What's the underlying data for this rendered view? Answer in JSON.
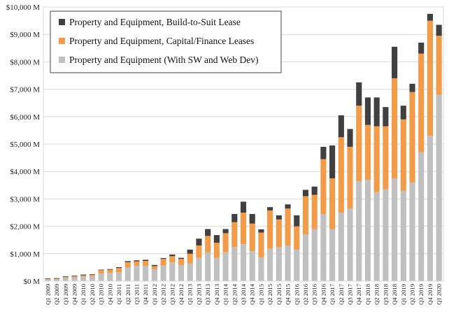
{
  "chart_data": {
    "type": "bar",
    "stacked": true,
    "title": "",
    "xlabel": "",
    "ylabel": "",
    "ylim": [
      0,
      10000
    ],
    "y_unit": "M",
    "yticks": [
      0,
      1000,
      2000,
      3000,
      4000,
      5000,
      6000,
      7000,
      8000,
      9000,
      10000
    ],
    "ytick_labels": [
      "$0 M",
      "$1,000 M",
      "$2,000 M",
      "$3,000 M",
      "$4,000 M",
      "$5,000 M",
      "$6,000 M",
      "$7,000 M",
      "$8,000 M",
      "$9,000 M",
      "$10,000 M"
    ],
    "grid": true,
    "legend_position": "top-left",
    "categories": [
      "Q1 2009",
      "Q2 2009",
      "Q3 2009",
      "Q4 2009",
      "Q1 2010",
      "Q2 2010",
      "Q3 2010",
      "Q4 2010",
      "Q1 2011",
      "Q2 2011",
      "Q3 2011",
      "Q4 2011",
      "Q1 2012",
      "Q2 2012",
      "Q3 2012",
      "Q4 2012",
      "Q1 2013",
      "Q2 2013",
      "Q3 2013",
      "Q4 2013",
      "Q1 2014",
      "Q2 2014",
      "Q3 2014",
      "Q4 2014",
      "Q1 2015",
      "Q2 2015",
      "Q3 2015",
      "Q4 2015",
      "Q1 2016",
      "Q2 2016",
      "Q3 2016",
      "Q4 2016",
      "Q1 2017",
      "Q2 2017",
      "Q3 2017",
      "Q4 2017",
      "Q1 2018",
      "Q2 2018",
      "Q3 2018",
      "Q4 2018",
      "Q1 2019",
      "Q2 2019",
      "Q3 2019",
      "Q4 2019",
      "Q1 2020"
    ],
    "series": [
      {
        "name": "Property and Equipment (With SW and Web Dev)",
        "color": "#c0c0c0",
        "values": [
          60,
          70,
          130,
          140,
          170,
          180,
          280,
          300,
          330,
          500,
          560,
          560,
          430,
          570,
          680,
          580,
          650,
          850,
          1050,
          850,
          1050,
          1250,
          1350,
          1100,
          870,
          1180,
          1230,
          1300,
          1150,
          1700,
          1900,
          2450,
          1900,
          2500,
          2650,
          3650,
          3700,
          3250,
          3350,
          3750,
          3300,
          3600,
          4700,
          5300,
          6800
        ]
      },
      {
        "name": "Property and Equipment, Capital/Finance Leases",
        "color": "#f29b48",
        "values": [
          20,
          20,
          30,
          40,
          40,
          50,
          120,
          120,
          150,
          190,
          160,
          180,
          120,
          240,
          230,
          230,
          350,
          450,
          600,
          550,
          700,
          900,
          1150,
          1000,
          900,
          1400,
          1020,
          1350,
          850,
          1400,
          1250,
          2000,
          1850,
          2750,
          2250,
          2750,
          2000,
          2400,
          2300,
          3650,
          2600,
          3300,
          3600,
          4200,
          2150
        ]
      },
      {
        "name": "Property and Equipment, Build-to-Suit Lease",
        "color": "#404040",
        "values": [
          20,
          20,
          20,
          20,
          30,
          20,
          20,
          20,
          30,
          40,
          40,
          40,
          40,
          30,
          60,
          40,
          150,
          250,
          250,
          280,
          150,
          300,
          400,
          350,
          120,
          120,
          150,
          150,
          400,
          230,
          300,
          450,
          1200,
          800,
          650,
          850,
          1000,
          1050,
          700,
          1150,
          500,
          300,
          400,
          250,
          400
        ]
      }
    ]
  }
}
